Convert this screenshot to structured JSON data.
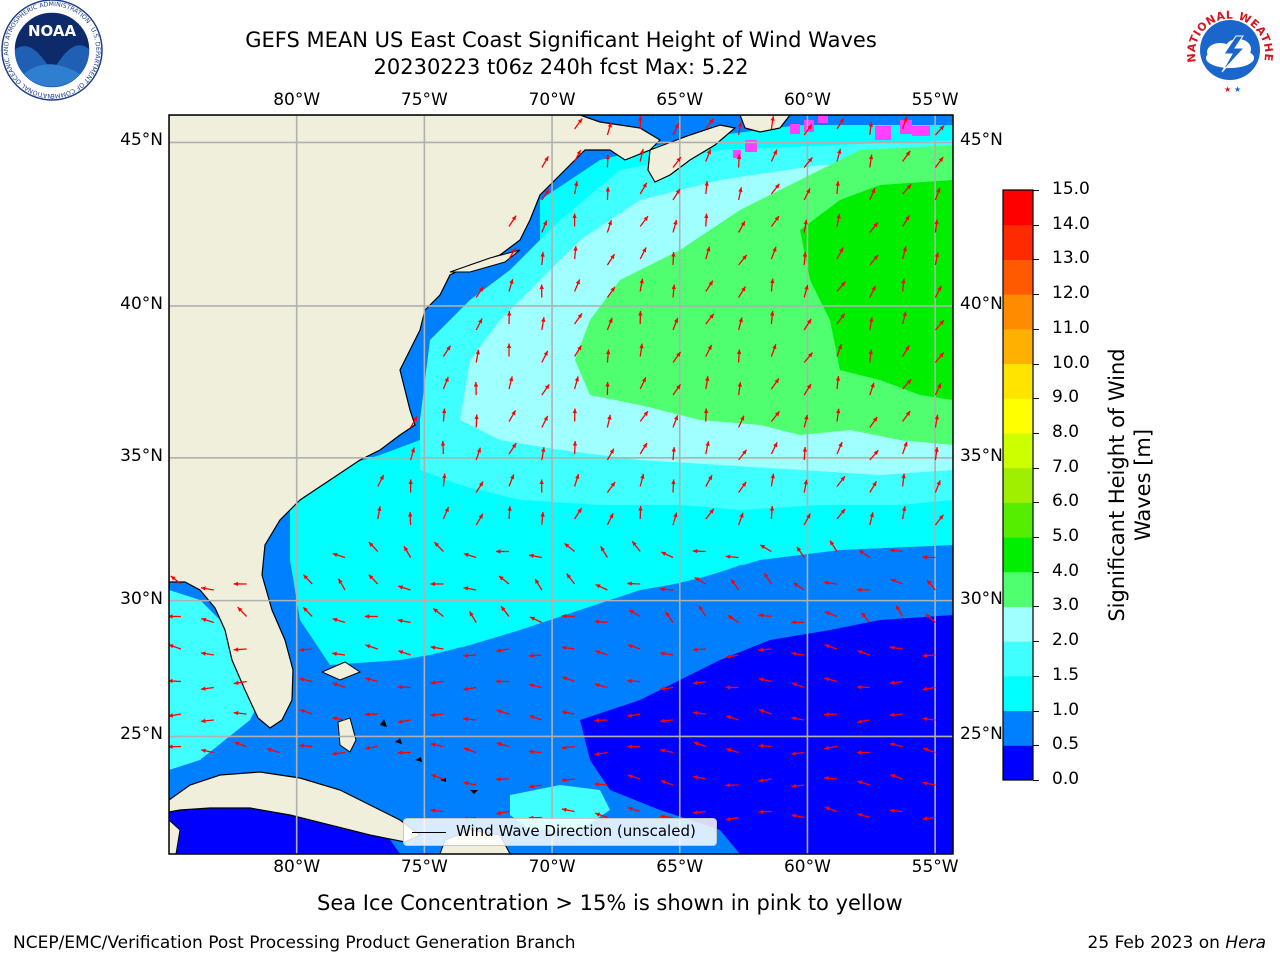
{
  "header": {
    "title_line1": "GEFS MEAN US East Coast Significant Height of Wind Waves",
    "title_line2": "20230223 t06z 240h fcst   Max: 5.22"
  },
  "logos": {
    "noaa_text": "NOAA",
    "noaa_ring_text": "NATIONAL OCEANIC AND ATMOSPHERIC ADMINISTRATION · U.S. DEPARTMENT OF COMMERCE",
    "nws_ring_text": "NATIONAL WEATHER SERVICE"
  },
  "map": {
    "lon_ticks": [
      "80°W",
      "75°W",
      "70°W",
      "65°W",
      "60°W",
      "55°W"
    ],
    "lat_ticks": [
      "45°N",
      "40°N",
      "35°N",
      "30°N",
      "25°N"
    ],
    "lon_values": [
      -80,
      -75,
      -70,
      -65,
      -60,
      -55
    ],
    "lat_values": [
      45,
      40,
      35,
      30,
      25
    ],
    "extent": {
      "lon_min": -85,
      "lon_max": -54.3,
      "lat_min": 20.5,
      "lat_max": 45.8
    },
    "land_color": "#efefdc",
    "arrow_color": "#ff0000",
    "grid_color": "#b0b0b0"
  },
  "legend": {
    "label": "Wind Wave Direction (unscaled)"
  },
  "colorbar": {
    "label_line1": "Significant Height of Wind",
    "label_line2": "Waves [m]",
    "ticks": [
      "0.0",
      "0.5",
      "1.0",
      "1.5",
      "2.0",
      "3.0",
      "4.0",
      "5.0",
      "6.0",
      "7.0",
      "8.0",
      "9.0",
      "10.0",
      "11.0",
      "12.0",
      "13.0",
      "14.0",
      "15.0"
    ],
    "colors": [
      "#0000ff",
      "#0080ff",
      "#00ffff",
      "#40ffff",
      "#a0ffff",
      "#50ff70",
      "#00ee00",
      "#55ee00",
      "#a0ee00",
      "#ccff00",
      "#ffff00",
      "#ffe400",
      "#ffb000",
      "#ff8c00",
      "#ff5a00",
      "#ff2a00",
      "#ff0000"
    ]
  },
  "footer": {
    "caption": "Sea Ice Concentration > 15% is shown in pink to yellow",
    "left": "NCEP/EMC/Verification Post Processing Product Generation Branch",
    "right_prefix": "25 Feb 2023 on ",
    "right_machine": "Hera"
  }
}
